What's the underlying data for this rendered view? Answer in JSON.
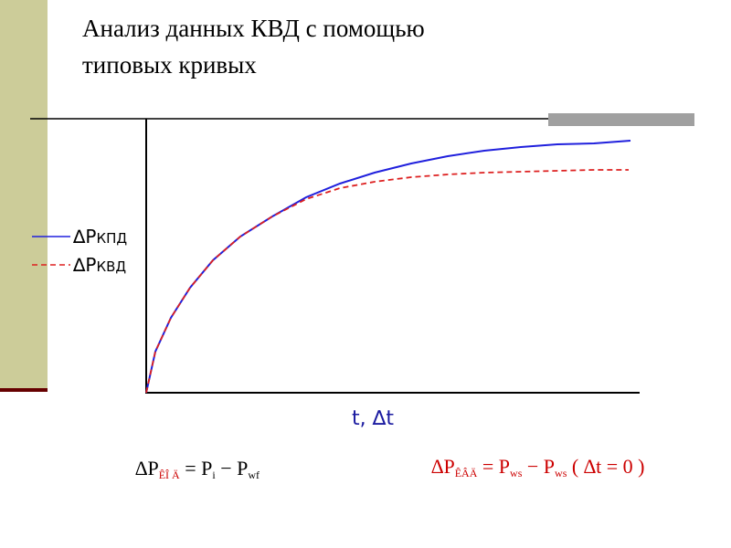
{
  "title": [
    "Анализ данных КВД с помощью",
    "типовых кривых"
  ],
  "legend": [
    {
      "symbol": "∆P",
      "sub": "КПД"
    },
    {
      "symbol": "∆P",
      "sub": "КВД"
    }
  ],
  "axis_label": "t, ∆t",
  "formulas": [
    {
      "parts": [
        "∆P",
        "ÊÎ Ä",
        " = P",
        "i",
        " − P",
        "wf"
      ]
    },
    {
      "parts": [
        "∆P",
        "ÊÂÄ",
        " = P",
        "ws",
        " − P",
        "ws",
        " ( ∆t = 0 )"
      ]
    }
  ]
}
